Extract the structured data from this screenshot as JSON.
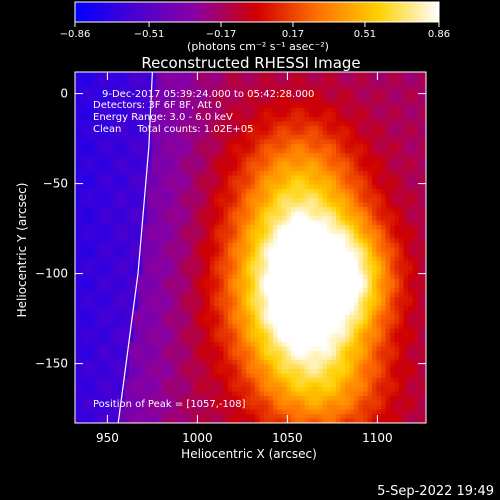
{
  "chart_data": {
    "type": "heatmap",
    "title": "Reconstructed RHESSI Image",
    "xlabel": "Heliocentric X (arcsec)",
    "ylabel": "Heliocentric Y (arcsec)",
    "xlim": [
      932,
      1127
    ],
    "ylim": [
      -183,
      12
    ],
    "x_ticks": [
      950,
      1000,
      1050,
      1100
    ],
    "x_tick_labels": [
      "950",
      "1000",
      "1050",
      "1100"
    ],
    "y_ticks": [
      0,
      -50,
      -100,
      -150
    ],
    "y_tick_labels": [
      "0",
      "−50",
      "−100",
      "−150"
    ],
    "colorbar": {
      "min": -0.86,
      "max": 0.86,
      "ticks": [
        -0.86,
        -0.51,
        -0.17,
        0.17,
        0.51,
        0.86
      ],
      "tick_labels": [
        "−0.86",
        "−0.51",
        "−0.17",
        "0.17",
        "0.51",
        "0.86"
      ],
      "unit_label": "(photons cm⁻² s⁻¹ asec⁻²)",
      "colormap": [
        "#0000ff",
        "#4a00d0",
        "#8a00a0",
        "#d00000",
        "#ff7000",
        "#ffd000",
        "#ffffff"
      ]
    },
    "peak": {
      "x": 1057,
      "y": -108,
      "value": 0.86
    },
    "sources": [
      {
        "x": 1057,
        "y": -108,
        "sx": 27,
        "sy": 36,
        "amp": 1.0
      },
      {
        "x": 1085,
        "y": -100,
        "sx": 17,
        "sy": 20,
        "amp": 0.3
      },
      {
        "x": 1055,
        "y": -45,
        "sx": 24,
        "sy": 28,
        "amp": 0.32
      },
      {
        "x": 1070,
        "y": -165,
        "sx": 26,
        "sy": 22,
        "amp": 0.28
      }
    ],
    "limb": [
      {
        "x": 956,
        "y": -183
      },
      {
        "x": 967,
        "y": -100
      },
      {
        "x": 973,
        "y": -30
      },
      {
        "x": 975,
        "y": 12
      }
    ],
    "annotations": [
      "9-Dec-2017 05:39:24.000 to 05:42:28.000",
      "Detectors: 3F 6F 8F, Att 0",
      "Energy Range: 3.0 - 6.0 keV",
      "Clean     Total counts: 1.02E+05",
      "Position of Peak = [1057,-108]"
    ],
    "footer_date": "5-Sep-2022 19:49"
  }
}
